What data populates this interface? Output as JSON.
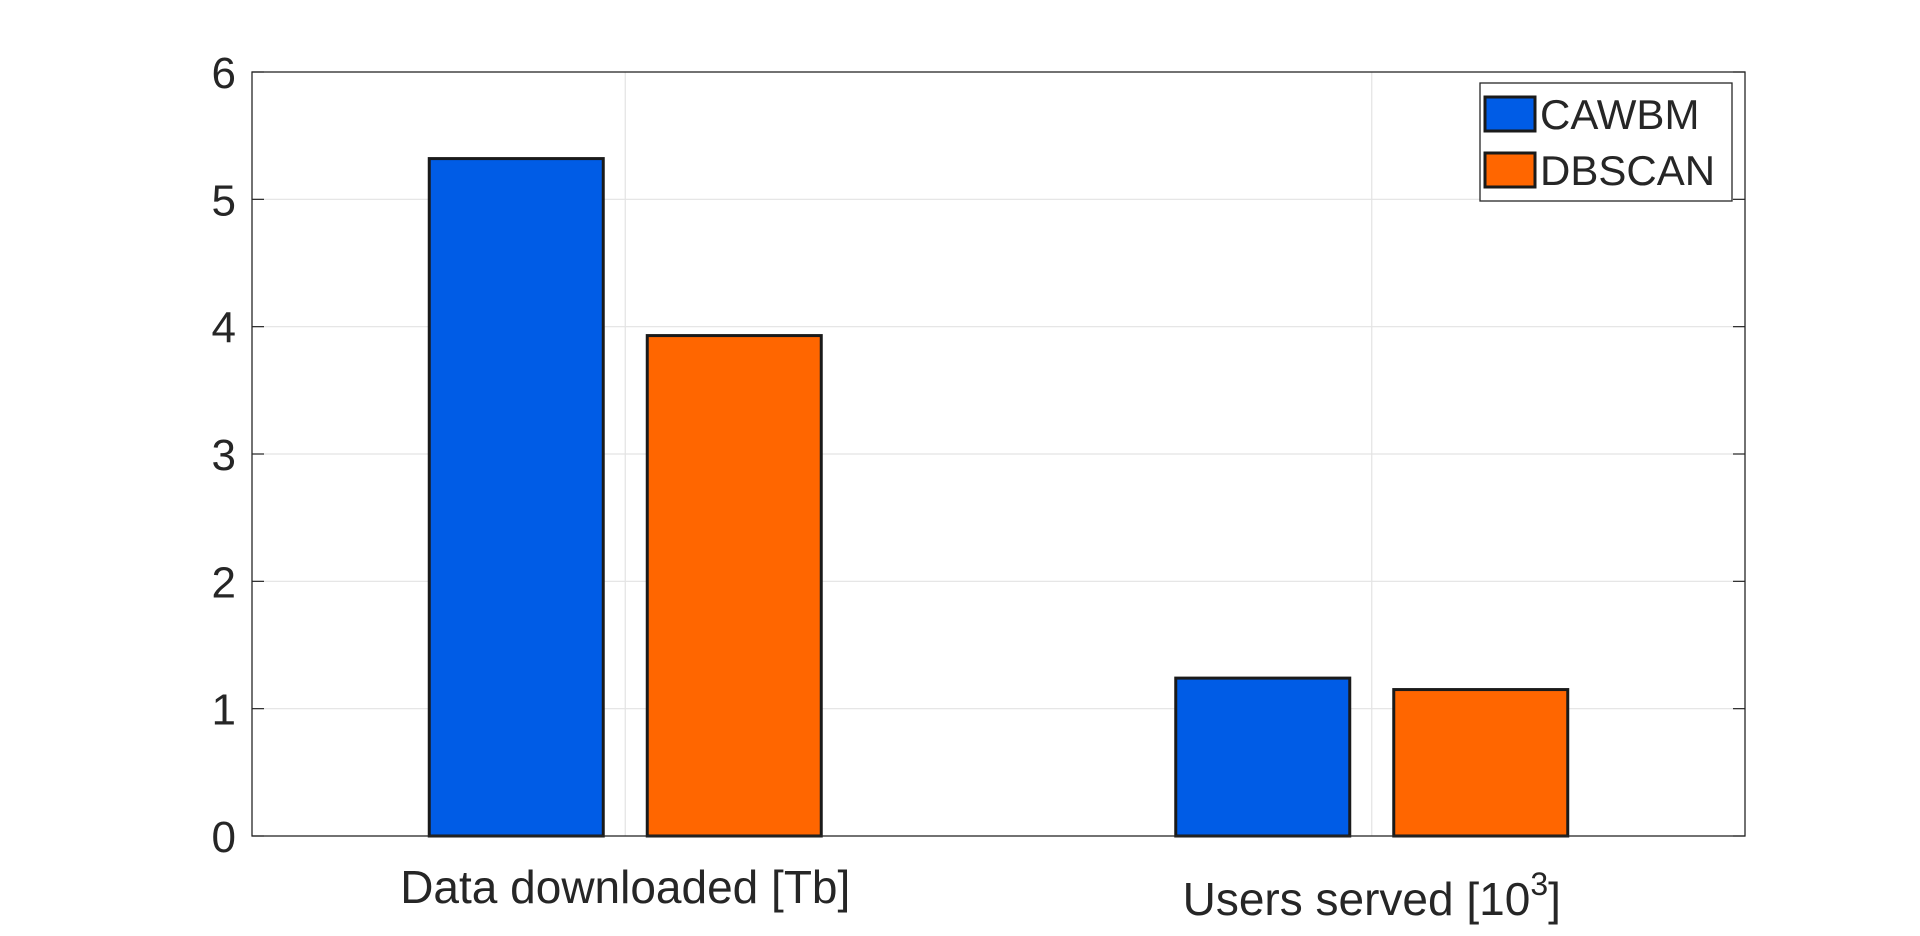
{
  "chart_data": {
    "type": "bar",
    "categories": [
      "Data downloaded [Tb]",
      "Users served [10^3]"
    ],
    "category_labels": [
      {
        "text": "Data downloaded [Tb]"
      },
      {
        "text": "Users served [10",
        "superscript": "3",
        "suffix": "]"
      }
    ],
    "series": [
      {
        "name": "CAWBM",
        "values": [
          5.32,
          1.24
        ],
        "color": "#005ce6"
      },
      {
        "name": "DBSCAN",
        "values": [
          3.93,
          1.15
        ],
        "color": "#ff6600"
      }
    ],
    "ylim": [
      0,
      6
    ],
    "yticks": [
      0,
      1,
      2,
      3,
      4,
      5,
      6
    ],
    "grid": true,
    "legend_position": "top-right",
    "title": "",
    "xlabel": "",
    "ylabel": ""
  }
}
